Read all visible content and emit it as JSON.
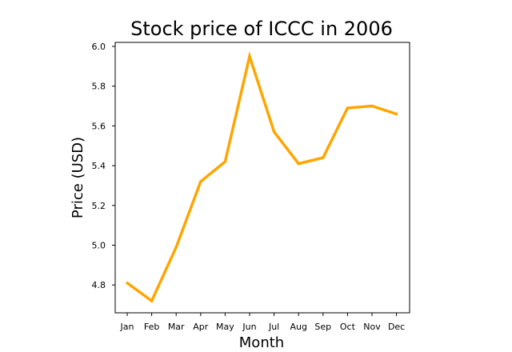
{
  "chart_data": {
    "type": "line",
    "title": "Stock price of ICCC in 2006",
    "xlabel": "Month",
    "ylabel": "Price (USD)",
    "categories": [
      "Jan",
      "Feb",
      "Mar",
      "Apr",
      "May",
      "Jun",
      "Jul",
      "Aug",
      "Sep",
      "Oct",
      "Nov",
      "Dec"
    ],
    "series": [
      {
        "values": [
          4.81,
          4.72,
          4.99,
          5.32,
          5.42,
          5.95,
          5.57,
          5.41,
          5.44,
          5.69,
          5.7,
          5.66
        ],
        "color": "#FFA500"
      }
    ],
    "yticks": [
      "4.8",
      "5.0",
      "5.2",
      "5.4",
      "5.6",
      "5.8",
      "6.0"
    ],
    "ylim": [
      4.66,
      6.02
    ],
    "grid": false,
    "legend": "none"
  }
}
